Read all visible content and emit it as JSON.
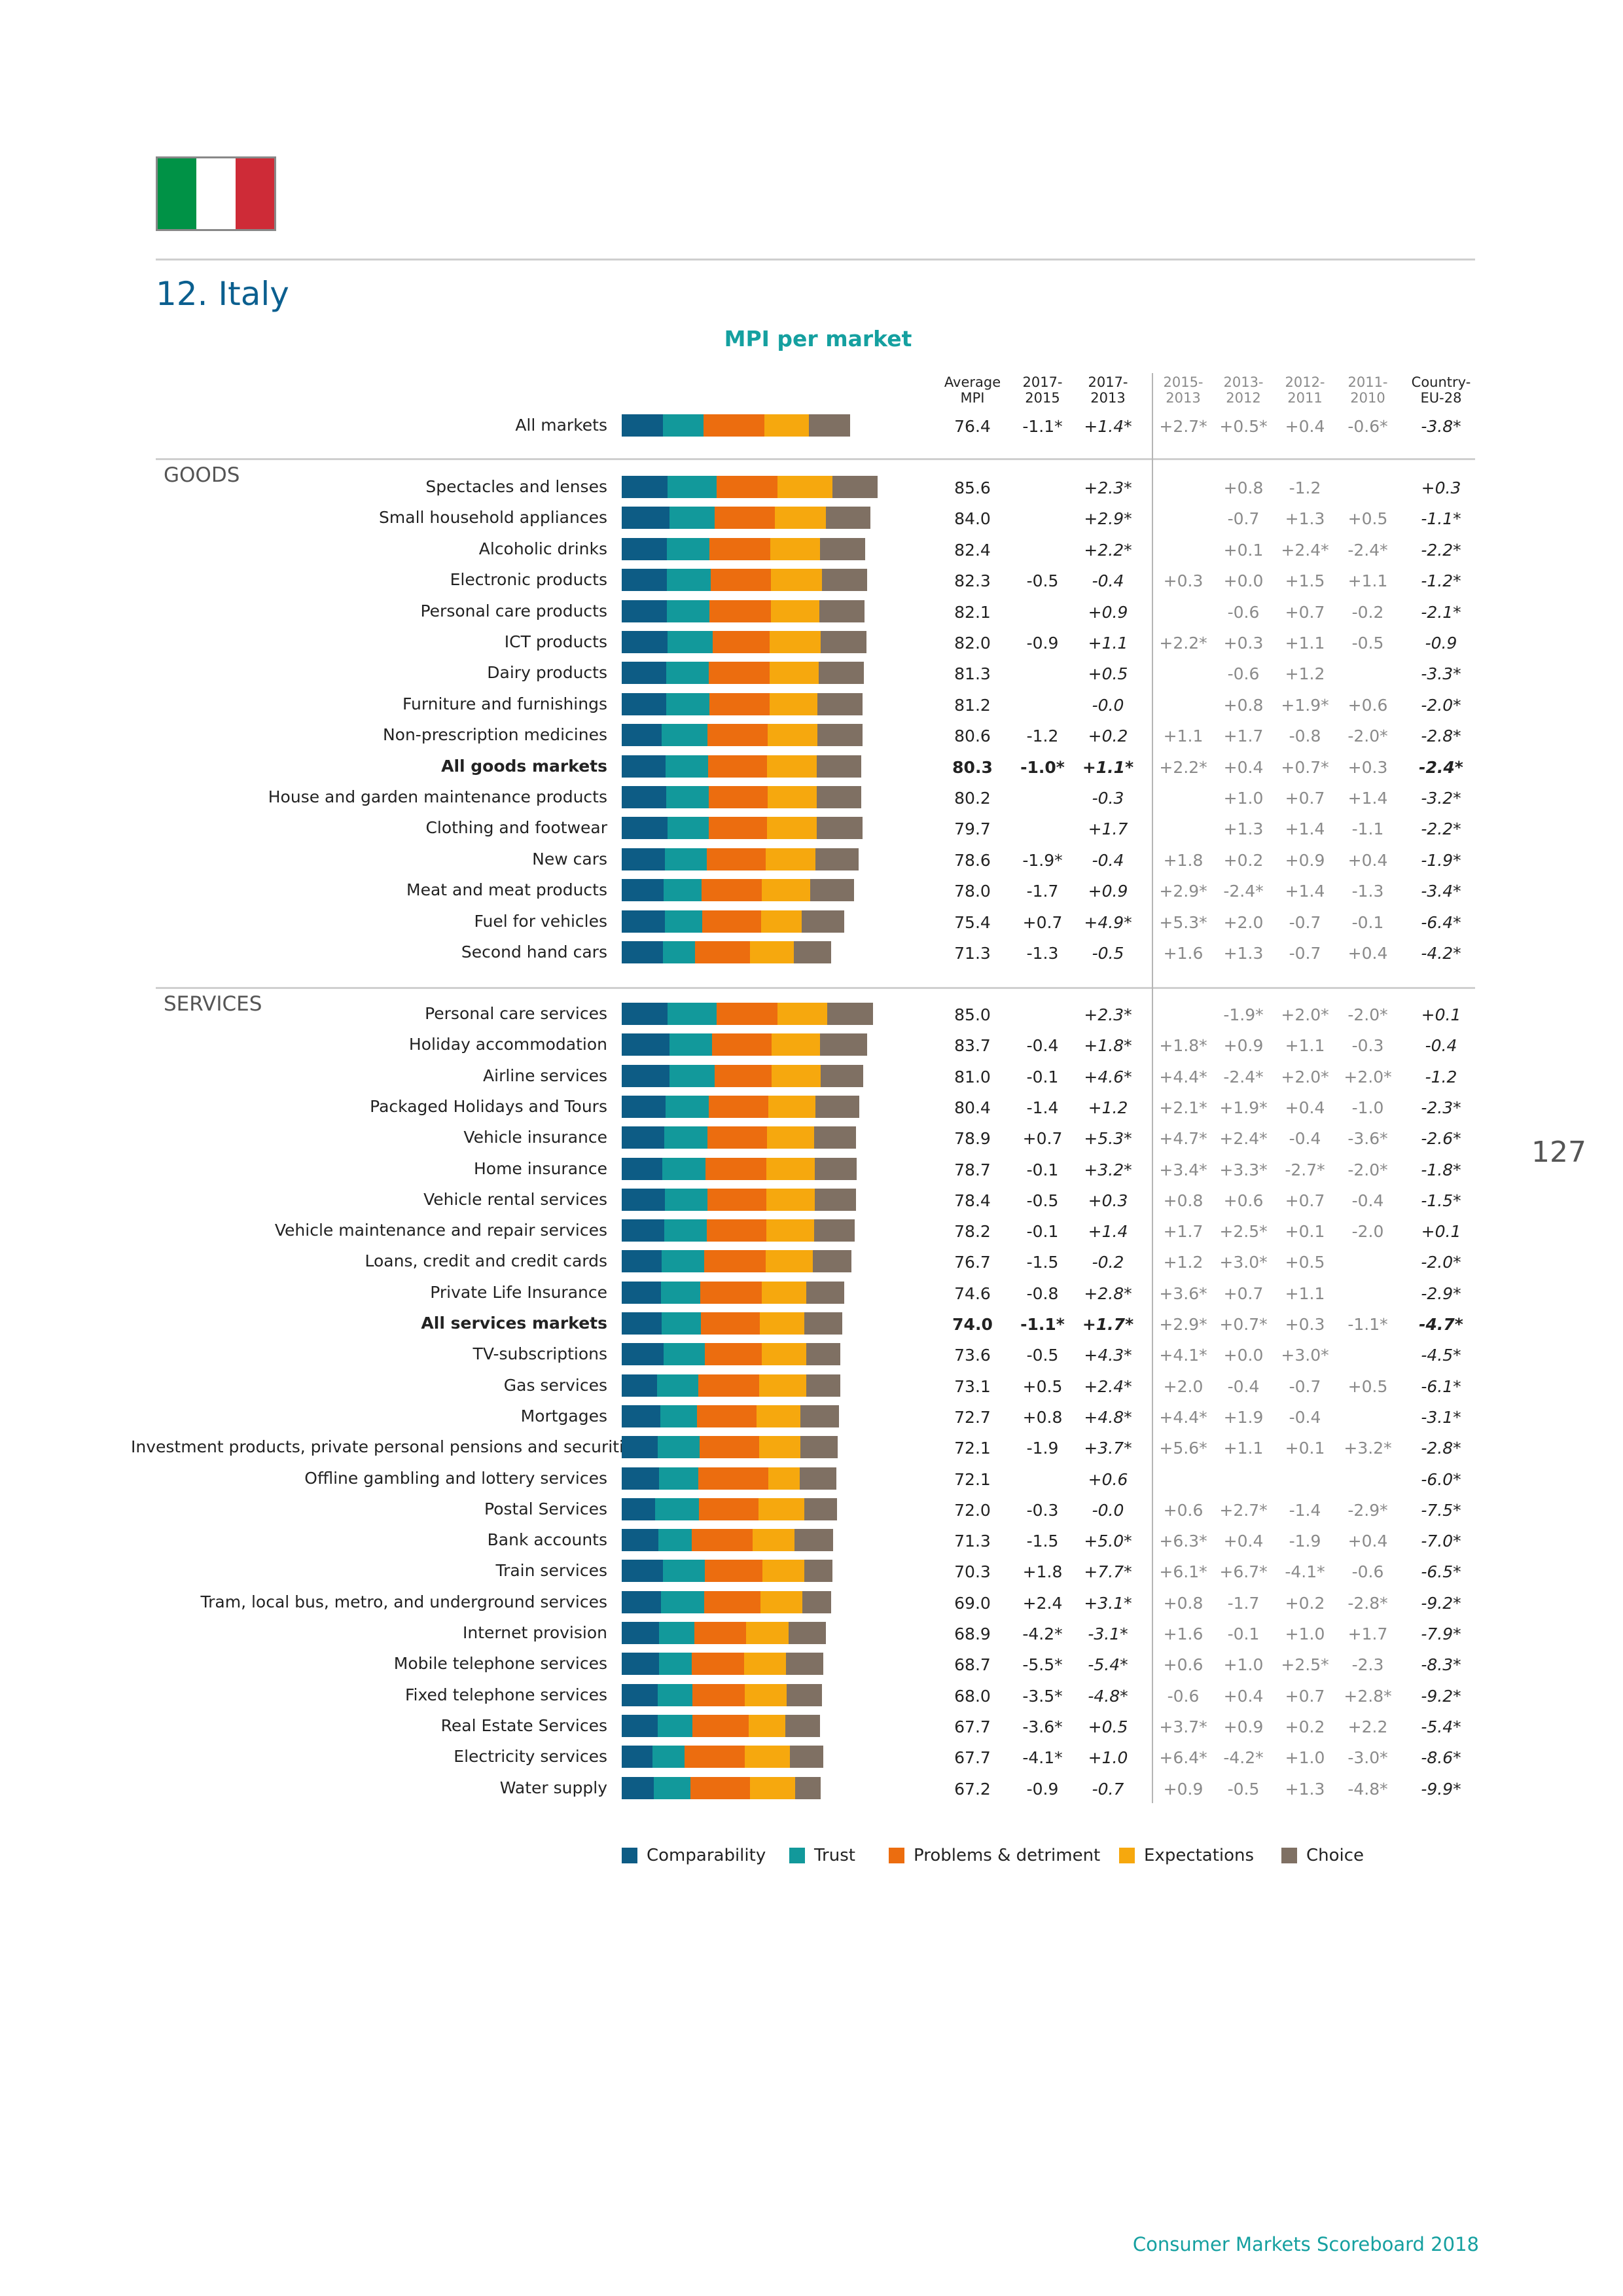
{
  "page": {
    "title": "12. Italy",
    "subtitle": "MPI per market",
    "page_number": "127",
    "footer": "Consumer Markets Scoreboard 2018",
    "flag_colors": [
      "#009246",
      "#ffffff",
      "#ce2b37"
    ]
  },
  "chart_data": {
    "type": "bar",
    "stacked": true,
    "orientation": "horizontal",
    "title": "MPI per market",
    "segment_colors": {
      "Comparability": "#0d5c85",
      "Trust": "#12999b",
      "Problems & detriment": "#ec6d0f",
      "Expectations": "#f6a80e",
      "Choice": "#7f7063"
    },
    "legend": [
      "Comparability",
      "Trust",
      "Problems & detriment",
      "Expectations",
      "Choice"
    ],
    "sections": [
      "GOODS",
      "SERVICES"
    ],
    "column_headers": [
      {
        "top": "Average",
        "bottom": "MPI"
      },
      {
        "top": "2017-",
        "bottom": "2015"
      },
      {
        "top": "2017-",
        "bottom": "2013"
      },
      {
        "top": "2015-",
        "bottom": "2013"
      },
      {
        "top": "2013-",
        "bottom": "2012"
      },
      {
        "top": "2012-",
        "bottom": "2011"
      },
      {
        "top": "2011-",
        "bottom": "2010"
      },
      {
        "top": "Country-",
        "bottom": "EU-28"
      }
    ],
    "markets": [
      {
        "name": "All markets",
        "group": "all",
        "bold": false,
        "segments": [
          13.2,
          13.2,
          19.4,
          14.5,
          13.2
        ],
        "avg": "76.4",
        "d1715": "-1.1*",
        "d1713": "+1.4*",
        "d1513": "+2.7*",
        "d1312": "+0.5*",
        "d1211": "+0.4",
        "d1110": "-0.6*",
        "eu": "-3.8*"
      },
      {
        "name": "Spectacles and lenses",
        "group": "goods",
        "bold": false,
        "segments": [
          14.8,
          15.8,
          19.6,
          17.6,
          14.5
        ],
        "avg": "85.6",
        "d1715": "",
        "d1713": "+2.3*",
        "d1513": "",
        "d1312": "+0.8",
        "d1211": "-1.2",
        "d1110": "",
        "eu": "+0.3"
      },
      {
        "name": "Small household appliances",
        "group": "goods",
        "bold": false,
        "segments": [
          15.3,
          14.6,
          19.3,
          16.4,
          14.5
        ],
        "avg": "84.0",
        "d1715": "",
        "d1713": "+2.9*",
        "d1513": "",
        "d1312": "-0.7",
        "d1211": "+1.3",
        "d1110": "+0.5",
        "eu": "-1.1*"
      },
      {
        "name": "Alcoholic drinks",
        "group": "goods",
        "bold": false,
        "segments": [
          14.5,
          13.8,
          19.4,
          16.0,
          14.7
        ],
        "avg": "82.4",
        "d1715": "",
        "d1713": "+2.2*",
        "d1513": "",
        "d1312": "+0.1",
        "d1211": "+2.4*",
        "d1110": "-2.4*",
        "eu": "-2.2*"
      },
      {
        "name": "Electronic products",
        "group": "goods",
        "bold": false,
        "segments": [
          14.6,
          14.1,
          19.3,
          16.5,
          14.5
        ],
        "avg": "82.3",
        "d1715": "-0.5",
        "d1713": "-0.4",
        "d1513": "+0.3",
        "d1312": "+0.0",
        "d1211": "+1.5",
        "d1110": "+1.1",
        "eu": "-1.2*"
      },
      {
        "name": "Personal care products",
        "group": "goods",
        "bold": false,
        "segments": [
          14.5,
          13.8,
          19.6,
          15.7,
          14.6
        ],
        "avg": "82.1",
        "d1715": "",
        "d1713": "+0.9",
        "d1513": "",
        "d1312": "-0.6",
        "d1211": "+0.7",
        "d1110": "-0.2",
        "eu": "-2.1*"
      },
      {
        "name": "ICT products",
        "group": "goods",
        "bold": false,
        "segments": [
          14.8,
          14.4,
          18.3,
          16.5,
          14.8
        ],
        "avg": "82.0",
        "d1715": "-0.9",
        "d1713": "+1.1",
        "d1513": "+2.2*",
        "d1312": "+0.3",
        "d1211": "+1.1",
        "d1110": "-0.5",
        "eu": "-0.9"
      },
      {
        "name": "Dairy products",
        "group": "goods",
        "bold": false,
        "segments": [
          14.4,
          13.6,
          19.5,
          15.8,
          14.6
        ],
        "avg": "81.3",
        "d1715": "",
        "d1713": "+0.5",
        "d1513": "",
        "d1312": "-0.6",
        "d1211": "+1.2",
        "d1110": "",
        "eu": "-3.3*"
      },
      {
        "name": "Furniture and furnishings",
        "group": "goods",
        "bold": false,
        "segments": [
          14.4,
          13.8,
          19.3,
          15.5,
          14.5
        ],
        "avg": "81.2",
        "d1715": "",
        "d1713": "-0.0",
        "d1513": "",
        "d1312": "+0.8",
        "d1211": "+1.9*",
        "d1110": "+0.6",
        "eu": "-2.0*"
      },
      {
        "name": "Non-prescription medicines",
        "group": "goods",
        "bold": false,
        "segments": [
          12.8,
          14.8,
          19.4,
          16.0,
          14.5
        ],
        "avg": "80.6",
        "d1715": "-1.2",
        "d1713": "+0.2",
        "d1513": "+1.1",
        "d1312": "+1.7",
        "d1211": "-0.8",
        "d1110": "-2.0*",
        "eu": "-2.8*"
      },
      {
        "name": "All goods markets",
        "group": "goods",
        "bold": true,
        "segments": [
          14.0,
          13.7,
          19.1,
          15.9,
          14.3
        ],
        "avg": "80.3",
        "d1715": "-1.0*",
        "d1713": "+1.1*",
        "d1513": "+2.2*",
        "d1312": "+0.4",
        "d1211": "+0.7*",
        "d1110": "+0.3",
        "eu": "-2.4*"
      },
      {
        "name": "House and garden maintenance products",
        "group": "goods",
        "bold": false,
        "segments": [
          14.4,
          13.7,
          18.8,
          15.8,
          14.3
        ],
        "avg": "80.2",
        "d1715": "",
        "d1713": "-0.3",
        "d1513": "",
        "d1312": "+1.0",
        "d1211": "+0.7",
        "d1110": "+1.4",
        "eu": "-3.2*"
      },
      {
        "name": "Clothing and footwear",
        "group": "goods",
        "bold": false,
        "segments": [
          14.7,
          13.4,
          18.6,
          16.0,
          14.8
        ],
        "avg": "79.7",
        "d1715": "",
        "d1713": "+1.7",
        "d1513": "",
        "d1312": "+1.3",
        "d1211": "+1.4",
        "d1110": "-1.1",
        "eu": "-2.2*"
      },
      {
        "name": "New cars",
        "group": "goods",
        "bold": false,
        "segments": [
          13.8,
          13.6,
          19.0,
          15.9,
          13.9
        ],
        "avg": "78.6",
        "d1715": "-1.9*",
        "d1713": "-0.4",
        "d1513": "+1.8",
        "d1312": "+0.2",
        "d1211": "+0.9",
        "d1110": "+0.4",
        "eu": "-1.9*"
      },
      {
        "name": "Meat and meat products",
        "group": "goods",
        "bold": false,
        "segments": [
          13.4,
          12.2,
          19.4,
          15.7,
          14.0
        ],
        "avg": "78.0",
        "d1715": "-1.7",
        "d1713": "+0.9",
        "d1513": "+2.9*",
        "d1312": "-2.4*",
        "d1211": "+1.4",
        "d1110": "-1.3",
        "eu": "-3.4*"
      },
      {
        "name": "Fuel for vehicles",
        "group": "goods",
        "bold": false,
        "segments": [
          13.8,
          12.0,
          19.0,
          13.1,
          13.7
        ],
        "avg": "75.4",
        "d1715": "+0.7",
        "d1713": "+4.9*",
        "d1513": "+5.3*",
        "d1312": "+2.0",
        "d1211": "-0.7",
        "d1110": "-0.1",
        "eu": "-6.4*"
      },
      {
        "name": "Second hand cars",
        "group": "goods",
        "bold": false,
        "segments": [
          13.2,
          10.3,
          17.8,
          14.1,
          12.0
        ],
        "avg": "71.3",
        "d1715": "-1.3",
        "d1713": "-0.5",
        "d1513": "+1.6",
        "d1312": "+1.3",
        "d1211": "-0.7",
        "d1110": "+0.4",
        "eu": "-4.2*"
      },
      {
        "name": "Personal care services",
        "group": "services",
        "bold": false,
        "segments": [
          14.8,
          15.8,
          19.6,
          15.9,
          14.8
        ],
        "avg": "85.0",
        "d1715": "",
        "d1713": "+2.3*",
        "d1513": "",
        "d1312": "-1.9*",
        "d1211": "+2.0*",
        "d1110": "-2.0*",
        "eu": "+0.1"
      },
      {
        "name": "Holiday accommodation",
        "group": "services",
        "bold": false,
        "segments": [
          15.3,
          13.7,
          19.2,
          15.6,
          15.1
        ],
        "avg": "83.7",
        "d1715": "-0.4",
        "d1713": "+1.8*",
        "d1513": "+1.8*",
        "d1312": "+0.9",
        "d1211": "+1.1",
        "d1110": "-0.3",
        "eu": "-0.4"
      },
      {
        "name": "Airline services",
        "group": "services",
        "bold": false,
        "segments": [
          15.4,
          14.4,
          18.5,
          15.8,
          13.6
        ],
        "avg": "81.0",
        "d1715": "-0.1",
        "d1713": "+4.6*",
        "d1513": "+4.4*",
        "d1312": "-2.4*",
        "d1211": "+2.0*",
        "d1110": "+2.0*",
        "eu": "-1.2"
      },
      {
        "name": "Packaged Holidays and Tours",
        "group": "services",
        "bold": false,
        "segments": [
          14.0,
          14.1,
          19.1,
          15.2,
          14.0
        ],
        "avg": "80.4",
        "d1715": "-1.4",
        "d1713": "+1.2",
        "d1513": "+2.1*",
        "d1312": "+1.9*",
        "d1211": "+0.4",
        "d1110": "-1.0",
        "eu": "-2.3*"
      },
      {
        "name": "Vehicle insurance",
        "group": "services",
        "bold": false,
        "segments": [
          13.7,
          13.8,
          19.2,
          15.3,
          13.4
        ],
        "avg": "78.9",
        "d1715": "+0.7",
        "d1713": "+5.3*",
        "d1513": "+4.7*",
        "d1312": "+2.4*",
        "d1211": "-0.4",
        "d1110": "-3.6*",
        "eu": "-2.6*"
      },
      {
        "name": "Home insurance",
        "group": "services",
        "bold": false,
        "segments": [
          13.0,
          14.0,
          19.6,
          15.6,
          13.3
        ],
        "avg": "78.7",
        "d1715": "-0.1",
        "d1713": "+3.2*",
        "d1513": "+3.4*",
        "d1312": "+3.3*",
        "d1211": "-2.7*",
        "d1110": "-2.0*",
        "eu": "-1.8*"
      },
      {
        "name": "Vehicle rental services",
        "group": "services",
        "bold": false,
        "segments": [
          13.8,
          13.7,
          19.0,
          15.7,
          13.1
        ],
        "avg": "78.4",
        "d1715": "-0.5",
        "d1713": "+0.3",
        "d1513": "+0.8",
        "d1312": "+0.6",
        "d1211": "+0.7",
        "d1110": "-0.4",
        "eu": "-1.5*"
      },
      {
        "name": "Vehicle maintenance and repair services",
        "group": "services",
        "bold": false,
        "segments": [
          13.6,
          13.8,
          19.2,
          15.3,
          13.0
        ],
        "avg": "78.2",
        "d1715": "-0.1",
        "d1713": "+1.4",
        "d1513": "+1.7",
        "d1312": "+2.5*",
        "d1211": "+0.1",
        "d1110": "-2.0",
        "eu": "+0.1"
      },
      {
        "name": "Loans, credit and credit cards",
        "group": "services",
        "bold": false,
        "segments": [
          12.9,
          13.7,
          19.7,
          15.1,
          12.5
        ],
        "avg": "76.7",
        "d1715": "-1.5",
        "d1713": "-0.2",
        "d1513": "+1.2",
        "d1312": "+3.0*",
        "d1211": "+0.5",
        "d1110": "",
        "eu": "-2.0*"
      },
      {
        "name": "Private Life Insurance",
        "group": "services",
        "bold": false,
        "segments": [
          12.6,
          12.7,
          19.8,
          14.3,
          12.1
        ],
        "avg": "74.6",
        "d1715": "-0.8",
        "d1713": "+2.8*",
        "d1513": "+3.6*",
        "d1312": "+0.7",
        "d1211": "+1.1",
        "d1110": "",
        "eu": "-2.9*"
      },
      {
        "name": "All services markets",
        "group": "services",
        "bold": true,
        "segments": [
          12.9,
          12.6,
          18.9,
          14.3,
          12.2
        ],
        "avg": "74.0",
        "d1715": "-1.1*",
        "d1713": "+1.7*",
        "d1513": "+2.9*",
        "d1312": "+0.7*",
        "d1211": "+0.3",
        "d1110": "-1.1*",
        "eu": "-4.7*"
      },
      {
        "name": "TV-subscriptions",
        "group": "services",
        "bold": false,
        "segments": [
          13.4,
          13.4,
          18.2,
          14.3,
          11.1
        ],
        "avg": "73.6",
        "d1715": "-0.5",
        "d1713": "+4.3*",
        "d1513": "+4.1*",
        "d1312": "+0.0",
        "d1211": "+3.0*",
        "d1110": "",
        "eu": "-4.5*"
      },
      {
        "name": "Gas services",
        "group": "services",
        "bold": false,
        "segments": [
          11.3,
          13.4,
          19.5,
          15.2,
          11.0
        ],
        "avg": "73.1",
        "d1715": "+0.5",
        "d1713": "+2.4*",
        "d1513": "+2.0",
        "d1312": "-0.4",
        "d1211": "-0.7",
        "d1110": "+0.5",
        "eu": "-6.1*"
      },
      {
        "name": "Mortgages",
        "group": "services",
        "bold": false,
        "segments": [
          12.5,
          11.7,
          19.2,
          14.0,
          12.4
        ],
        "avg": "72.7",
        "d1715": "+0.8",
        "d1713": "+4.8*",
        "d1513": "+4.4*",
        "d1312": "+1.9",
        "d1211": "-0.4",
        "d1110": "",
        "eu": "-3.1*"
      },
      {
        "name": "Investment products, private personal pensions and securities",
        "group": "services",
        "bold": false,
        "segments": [
          11.5,
          13.6,
          19.1,
          13.2,
          12.1
        ],
        "avg": "72.1",
        "d1715": "-1.9",
        "d1713": "+3.7*",
        "d1513": "+5.6*",
        "d1312": "+1.1",
        "d1211": "+0.1",
        "d1110": "+3.2*",
        "eu": "-2.8*"
      },
      {
        "name": "Offline gambling and lottery services",
        "group": "services",
        "bold": false,
        "segments": [
          12.0,
          12.7,
          22.4,
          10.2,
          11.7
        ],
        "avg": "72.1",
        "d1715": "",
        "d1713": "+0.6",
        "d1513": "",
        "d1312": "",
        "d1211": "",
        "d1110": "",
        "eu": "-6.0*"
      },
      {
        "name": "Postal Services",
        "group": "services",
        "bold": false,
        "segments": [
          10.7,
          14.2,
          19.1,
          14.7,
          10.5
        ],
        "avg": "72.0",
        "d1715": "-0.3",
        "d1713": "-0.0",
        "d1513": "+0.6",
        "d1312": "+2.7*",
        "d1211": "-1.4",
        "d1110": "-2.9*",
        "eu": "-7.5*"
      },
      {
        "name": "Bank accounts",
        "group": "services",
        "bold": false,
        "segments": [
          11.7,
          10.9,
          19.6,
          13.4,
          12.4
        ],
        "avg": "71.3",
        "d1715": "-1.5",
        "d1713": "+5.0*",
        "d1513": "+6.3*",
        "d1312": "+0.4",
        "d1211": "-1.9",
        "d1110": "+0.4",
        "eu": "-7.0*"
      },
      {
        "name": "Train services",
        "group": "services",
        "bold": false,
        "segments": [
          13.3,
          13.4,
          18.6,
          13.5,
          8.9
        ],
        "avg": "70.3",
        "d1715": "+1.8",
        "d1713": "+7.7*",
        "d1513": "+6.1*",
        "d1312": "+6.7*",
        "d1211": "-4.1*",
        "d1110": "-0.6",
        "eu": "-6.5*"
      },
      {
        "name": "Tram, local bus, metro, and underground services",
        "group": "services",
        "bold": false,
        "segments": [
          12.6,
          13.9,
          18.1,
          13.6,
          9.2
        ],
        "avg": "69.0",
        "d1715": "+2.4",
        "d1713": "+3.1*",
        "d1513": "+0.8",
        "d1312": "-1.7",
        "d1211": "+0.2",
        "d1110": "-2.8*",
        "eu": "-9.2*"
      },
      {
        "name": "Internet provision",
        "group": "services",
        "bold": false,
        "segments": [
          12.1,
          11.2,
          16.8,
          13.5,
          12.1
        ],
        "avg": "68.9",
        "d1715": "-4.2*",
        "d1713": "-3.1*",
        "d1513": "+1.6",
        "d1312": "-0.1",
        "d1211": "+1.0",
        "d1110": "+1.7",
        "eu": "-7.9*"
      },
      {
        "name": "Mobile telephone services",
        "group": "services",
        "bold": false,
        "segments": [
          12.1,
          10.4,
          16.8,
          13.5,
          12.1
        ],
        "avg": "68.7",
        "d1715": "-5.5*",
        "d1713": "-5.4*",
        "d1513": "+0.6",
        "d1312": "+1.0",
        "d1211": "+2.5*",
        "d1110": "-2.3",
        "eu": "-8.3*"
      },
      {
        "name": "Fixed telephone services",
        "group": "services",
        "bold": false,
        "segments": [
          11.5,
          11.2,
          16.8,
          13.5,
          11.5
        ],
        "avg": "68.0",
        "d1715": "-3.5*",
        "d1713": "-4.8*",
        "d1513": "-0.6",
        "d1312": "+0.4",
        "d1211": "+0.7",
        "d1110": "+2.8*",
        "eu": "-9.2*"
      },
      {
        "name": "Real Estate Services",
        "group": "services",
        "bold": false,
        "segments": [
          11.5,
          11.2,
          18.2,
          11.8,
          11.2
        ],
        "avg": "67.7",
        "d1715": "-3.6*",
        "d1713": "+0.5",
        "d1513": "+3.7*",
        "d1312": "+0.9",
        "d1211": "+0.2",
        "d1110": "+2.2",
        "eu": "-5.4*"
      },
      {
        "name": "Electricity services",
        "group": "services",
        "bold": false,
        "segments": [
          9.8,
          10.4,
          19.4,
          14.5,
          10.7
        ],
        "avg": "67.7",
        "d1715": "-4.1*",
        "d1713": "+1.0",
        "d1513": "+6.4*",
        "d1312": "-4.2*",
        "d1211": "+1.0",
        "d1110": "-3.0*",
        "eu": "-8.6*"
      },
      {
        "name": "Water supply",
        "group": "services",
        "bold": false,
        "segments": [
          10.4,
          11.7,
          19.1,
          14.5,
          8.3
        ],
        "avg": "67.2",
        "d1715": "-0.9",
        "d1713": "-0.7",
        "d1513": "+0.9",
        "d1312": "-0.5",
        "d1211": "+1.3",
        "d1110": "-4.8*",
        "eu": "-9.9*"
      }
    ]
  }
}
